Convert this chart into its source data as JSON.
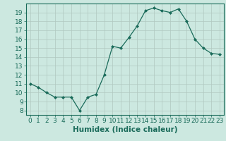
{
  "x": [
    0,
    1,
    2,
    3,
    4,
    5,
    6,
    7,
    8,
    9,
    10,
    11,
    12,
    13,
    14,
    15,
    16,
    17,
    18,
    19,
    20,
    21,
    22,
    23
  ],
  "y": [
    11.0,
    10.6,
    10.0,
    9.5,
    9.5,
    9.5,
    8.0,
    9.5,
    9.8,
    12.0,
    15.2,
    15.0,
    16.2,
    17.5,
    19.2,
    19.5,
    19.2,
    19.0,
    19.4,
    18.0,
    16.0,
    15.0,
    14.4,
    14.3
  ],
  "line_color": "#1a6b5a",
  "marker": "D",
  "marker_size": 2.0,
  "bg_color": "#cce8e0",
  "grid_color": "#b0c8c0",
  "xlabel": "Humidex (Indice chaleur)",
  "xlim": [
    -0.5,
    23.5
  ],
  "ylim": [
    7.5,
    20.0
  ],
  "yticks": [
    8,
    9,
    10,
    11,
    12,
    13,
    14,
    15,
    16,
    17,
    18,
    19
  ],
  "xticks": [
    0,
    1,
    2,
    3,
    4,
    5,
    6,
    7,
    8,
    9,
    10,
    11,
    12,
    13,
    14,
    15,
    16,
    17,
    18,
    19,
    20,
    21,
    22,
    23
  ],
  "tick_label_color": "#1a6b5a",
  "xlabel_color": "#1a6b5a",
  "xlabel_fontsize": 7.5,
  "tick_fontsize": 6.5,
  "border_color": "#1a6b5a",
  "linewidth": 0.9
}
